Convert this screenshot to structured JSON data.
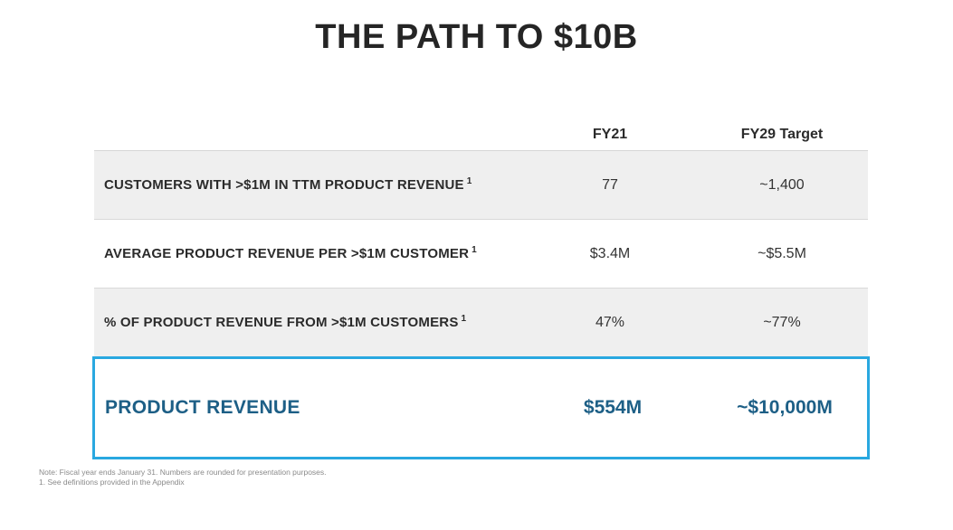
{
  "title": "THE PATH TO $10B",
  "columns": {
    "fy21": "FY21",
    "fy29": "FY29 Target"
  },
  "rows": [
    {
      "label": "CUSTOMERS WITH >$1M IN TTM PRODUCT REVENUE",
      "footnote": "1",
      "fy21": "77",
      "fy29": "~1,400"
    },
    {
      "label": "AVERAGE PRODUCT REVENUE PER >$1M CUSTOMER",
      "footnote": "1",
      "fy21": "$3.4M",
      "fy29": "~$5.5M"
    },
    {
      "label": "% OF PRODUCT REVENUE FROM >$1M CUSTOMERS",
      "footnote": "1",
      "fy21": "47%",
      "fy29": "~77%"
    }
  ],
  "highlight": {
    "label": "PRODUCT REVENUE",
    "fy21": "$554M",
    "fy29": "~$10,000M"
  },
  "notes": {
    "note": "Note:  Fiscal year ends January 31. Numbers are rounded for presentation purposes.",
    "footnote1": "1.  See definitions provided in the Appendix"
  },
  "colors": {
    "highlight_border": "#29a8e0",
    "highlight_text": "#1d5f86",
    "shaded_row": "#efefef"
  }
}
